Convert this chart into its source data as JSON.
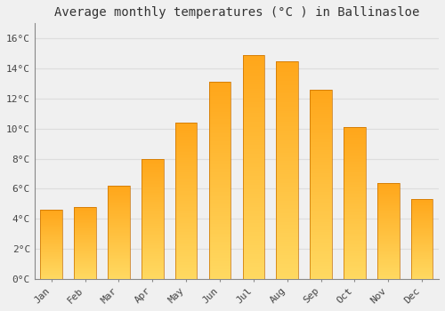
{
  "title": "Average monthly temperatures (°C ) in Ballinasloe",
  "months": [
    "Jan",
    "Feb",
    "Mar",
    "Apr",
    "May",
    "Jun",
    "Jul",
    "Aug",
    "Sep",
    "Oct",
    "Nov",
    "Dec"
  ],
  "values": [
    4.6,
    4.8,
    6.2,
    8.0,
    10.4,
    13.1,
    14.9,
    14.5,
    12.6,
    10.1,
    6.4,
    5.3
  ],
  "bar_color_top": "#FFA500",
  "bar_color_bottom": "#FFD060",
  "background_color": "#F0F0F0",
  "grid_color": "#DDDDDD",
  "title_fontsize": 10,
  "tick_fontsize": 8,
  "ylim": [
    0,
    17
  ],
  "yticks": [
    0,
    2,
    4,
    6,
    8,
    10,
    12,
    14,
    16
  ],
  "ytick_labels": [
    "0°C",
    "2°C",
    "4°C",
    "6°C",
    "8°C",
    "10°C",
    "12°C",
    "14°C",
    "16°C"
  ]
}
